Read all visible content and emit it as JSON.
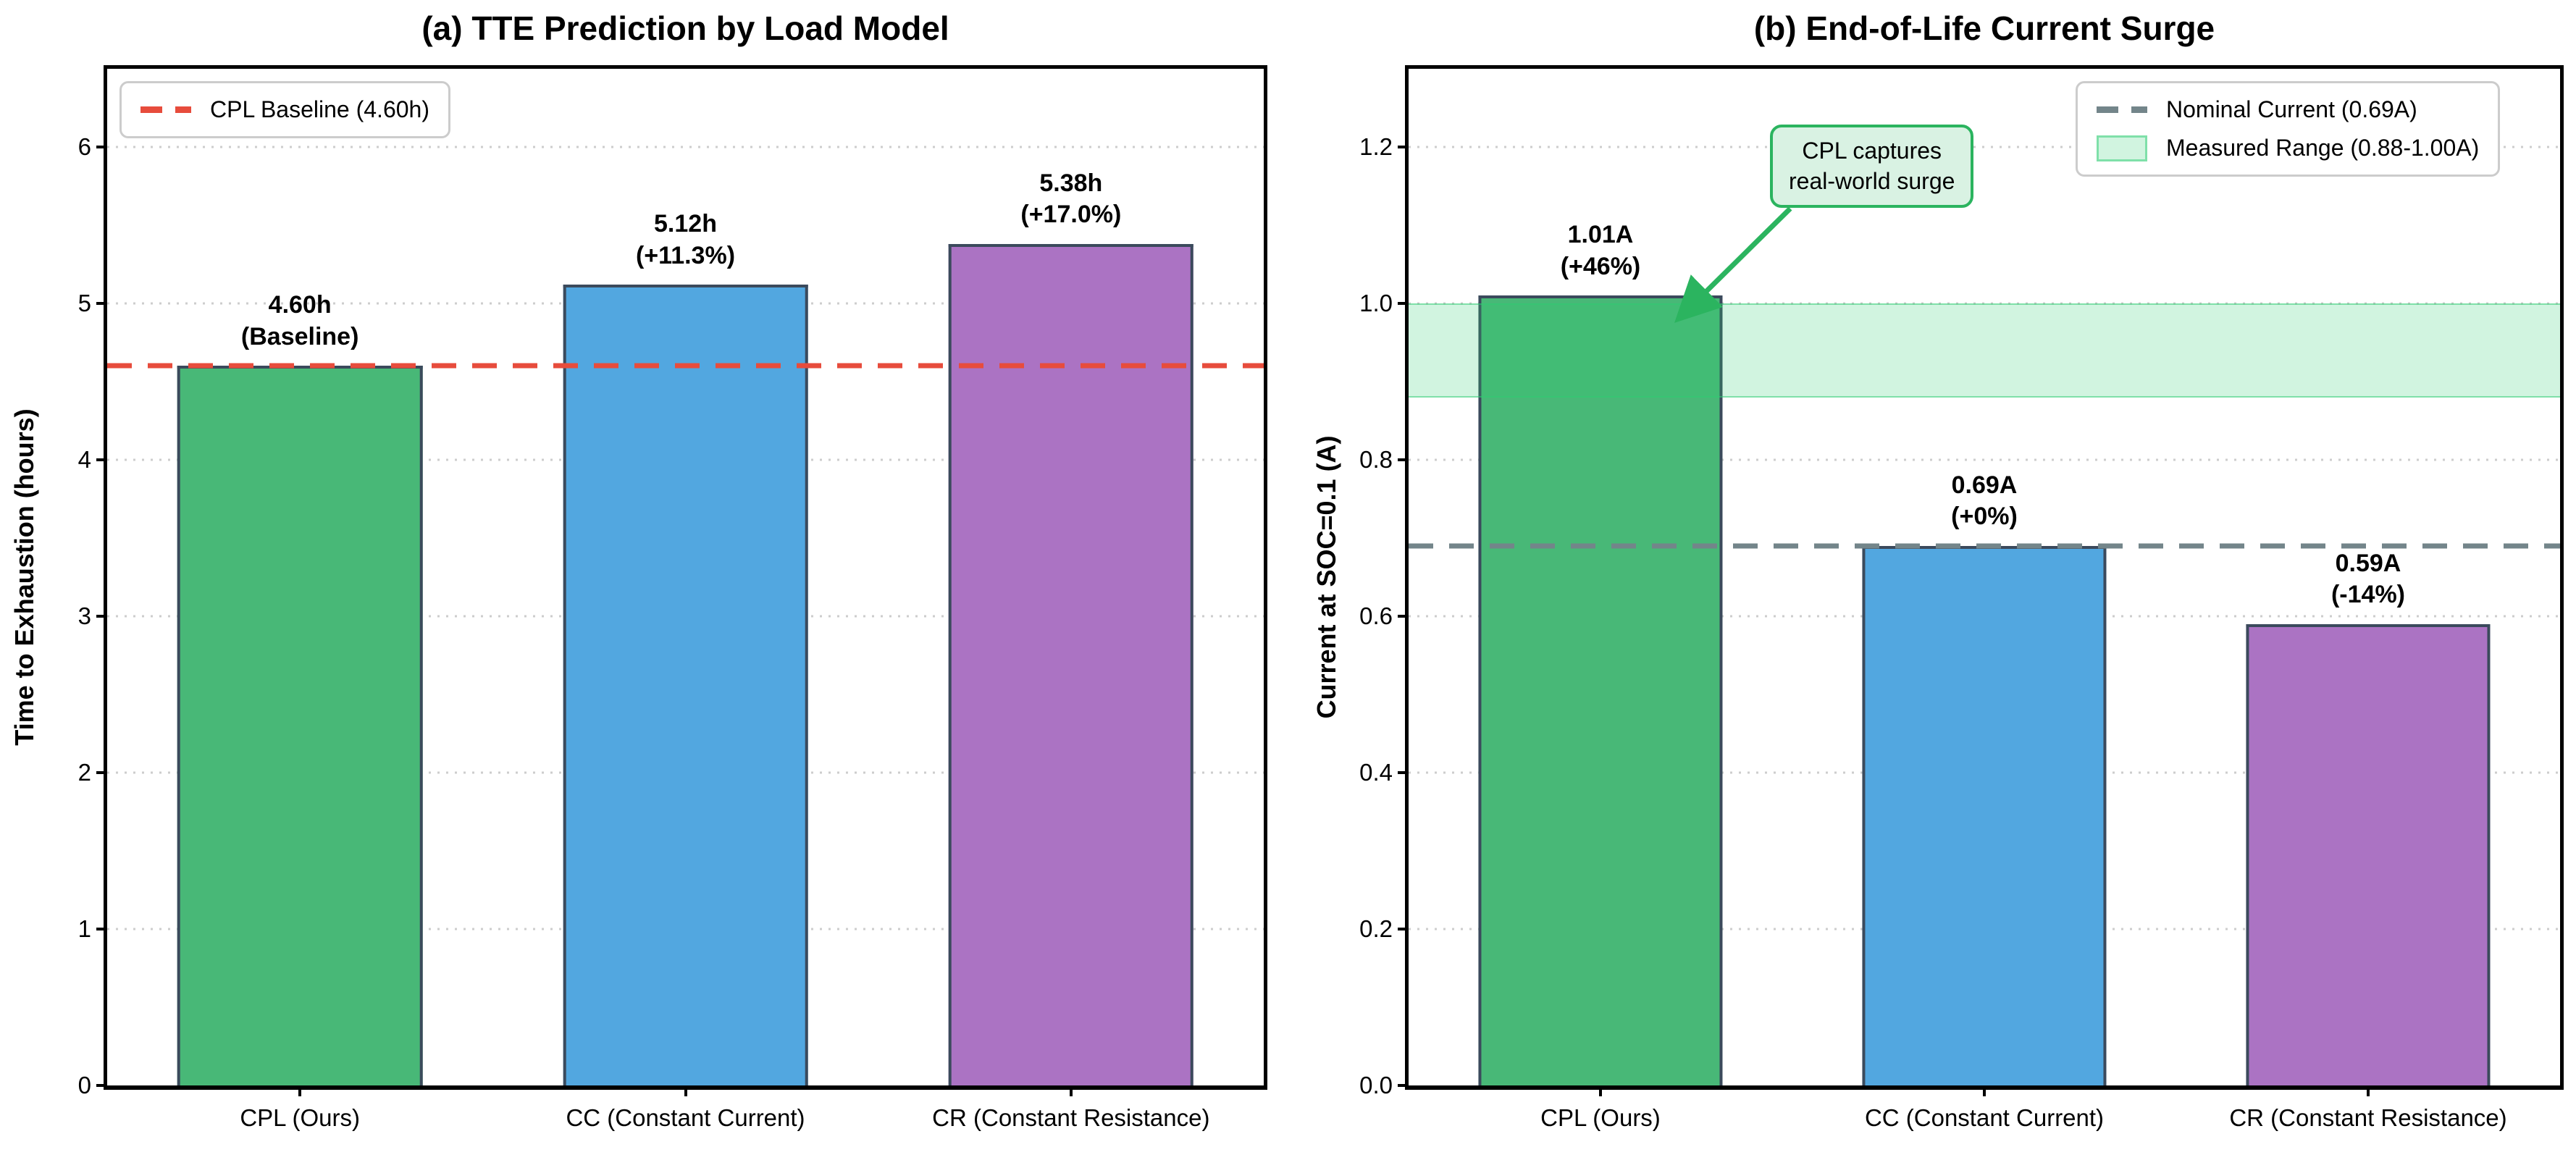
{
  "figure": {
    "background": "#ffffff",
    "grid_color": "#cdcdcd",
    "spine_color": "#000000"
  },
  "chart_data": [
    {
      "type": "bar",
      "id": "a",
      "title": "(a) TTE Prediction by Load Model",
      "xlabel": "",
      "ylabel": "Time to Exhaustion (hours)",
      "ylim": [
        0,
        6.5
      ],
      "grid": "horizontal-dotted",
      "yticks": [
        0,
        1,
        2,
        3,
        4,
        5,
        6
      ],
      "ytick_labels": [
        "0",
        "1",
        "2",
        "3",
        "4",
        "5",
        "6"
      ],
      "categories": [
        "CPL (Ours)",
        "CC (Constant Current)",
        "CR (Constant Resistance)"
      ],
      "values": [
        4.6,
        5.12,
        5.38
      ],
      "bar_labels": [
        [
          "4.60h",
          "(Baseline)"
        ],
        [
          "5.12h",
          "(+11.3%)"
        ],
        [
          "5.38h",
          "(+17.0%)"
        ]
      ],
      "bar_colors": [
        "#48b877",
        "#52a7e0",
        "#ab73c3"
      ],
      "bar_edge_color": "#3b4a5c",
      "ref_lines": [
        {
          "value": 4.6,
          "color": "#e74c3c",
          "style": "dashed",
          "label": "CPL Baseline (4.60h)"
        }
      ],
      "legend_position": "upper-left"
    },
    {
      "type": "bar",
      "id": "b",
      "title": "(b) End-of-Life Current Surge",
      "xlabel": "",
      "ylabel": "Current at SOC=0.1 (A)",
      "ylim": [
        0,
        1.3
      ],
      "grid": "horizontal-dotted",
      "yticks": [
        0,
        0.2,
        0.4,
        0.6,
        0.8,
        1.0,
        1.2
      ],
      "ytick_labels": [
        "0.0",
        "0.2",
        "0.4",
        "0.6",
        "0.8",
        "1.0",
        "1.2"
      ],
      "categories": [
        "CPL (Ours)",
        "CC (Constant Current)",
        "CR (Constant Resistance)"
      ],
      "values": [
        1.01,
        0.69,
        0.59
      ],
      "bar_labels": [
        [
          "1.01A",
          "(+46%)"
        ],
        [
          "0.69A",
          "(+0%)"
        ],
        [
          "0.59A",
          "(-14%)"
        ]
      ],
      "bar_colors": [
        "#48b877",
        "#52a7e0",
        "#ab73c3"
      ],
      "bar_edge_color": "#3b4a5c",
      "ref_lines": [
        {
          "value": 0.69,
          "color": "#73858a",
          "style": "dashed",
          "label": "Nominal Current (0.69A)"
        }
      ],
      "bands": [
        {
          "from": 0.88,
          "to": 1.0,
          "color": "rgba(46, 204, 113, 0.22)",
          "edge": "rgba(46, 204, 113, 0.5)",
          "label": "Measured Range (0.88-1.00A)"
        }
      ],
      "annotation": {
        "line1": "CPL captures",
        "line2": "real-world surge",
        "fill": "#d9f2e3",
        "border": "#2bb45f",
        "points_to_category": "CPL (Ours)"
      },
      "legend_position": "upper-right"
    }
  ]
}
